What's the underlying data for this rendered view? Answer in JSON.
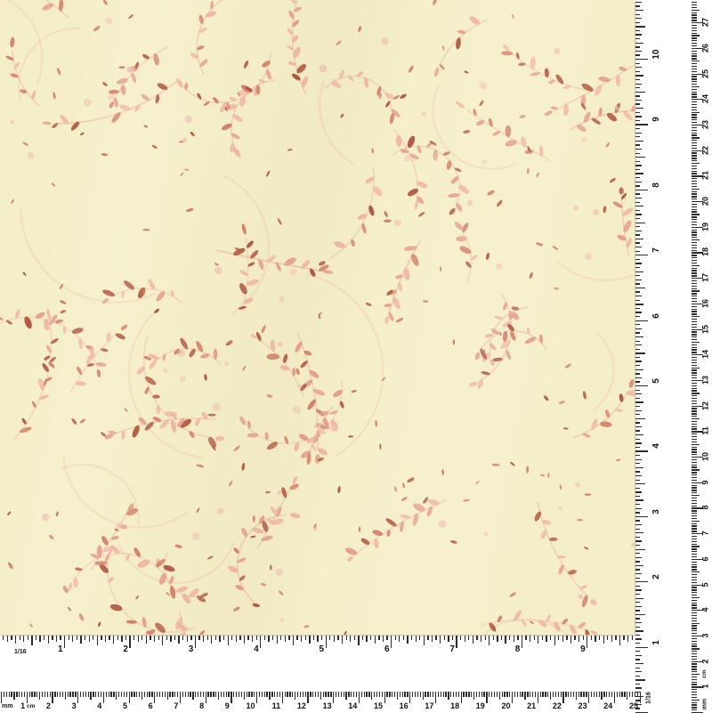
{
  "fabric": {
    "background_color": "#f5efc9",
    "pattern_colors": {
      "stem": "#eec6b0",
      "leaf_light": "#f1b4a5",
      "leaf_mid": "#e69a8a",
      "leaf_deep": "#d27a63",
      "leaf_rust": "#ae5038",
      "blush_dot": "#f2c6ba"
    },
    "tick_color": "#2e2c2a"
  },
  "rulers": {
    "horizontal_inch": {
      "scale_label": "1/16",
      "numbers": [
        "1",
        "2",
        "3",
        "4",
        "5",
        "6",
        "7",
        "8",
        "9"
      ]
    },
    "vertical_inch": {
      "scale_label": "1/16",
      "numbers": [
        "1",
        "2",
        "3",
        "4",
        "5",
        "6",
        "7",
        "8",
        "9",
        "10"
      ]
    },
    "horizontal_cm": {
      "mm_label": "mm",
      "cm_label": "cm",
      "numbers": [
        "1",
        "2",
        "3",
        "4",
        "5",
        "6",
        "7",
        "8",
        "9",
        "10",
        "11",
        "12",
        "13",
        "14",
        "15",
        "16",
        "17",
        "18",
        "19",
        "20",
        "21",
        "22",
        "23",
        "24",
        "25"
      ]
    },
    "vertical_cm": {
      "mm_label": "mm",
      "cm_label": "cm",
      "numbers": [
        "1",
        "2",
        "3",
        "4",
        "5",
        "6",
        "7",
        "8",
        "9",
        "10",
        "11",
        "12",
        "13",
        "14",
        "15",
        "16",
        "17",
        "18",
        "19",
        "20",
        "21",
        "22",
        "23",
        "24",
        "25",
        "26",
        "27"
      ]
    }
  }
}
